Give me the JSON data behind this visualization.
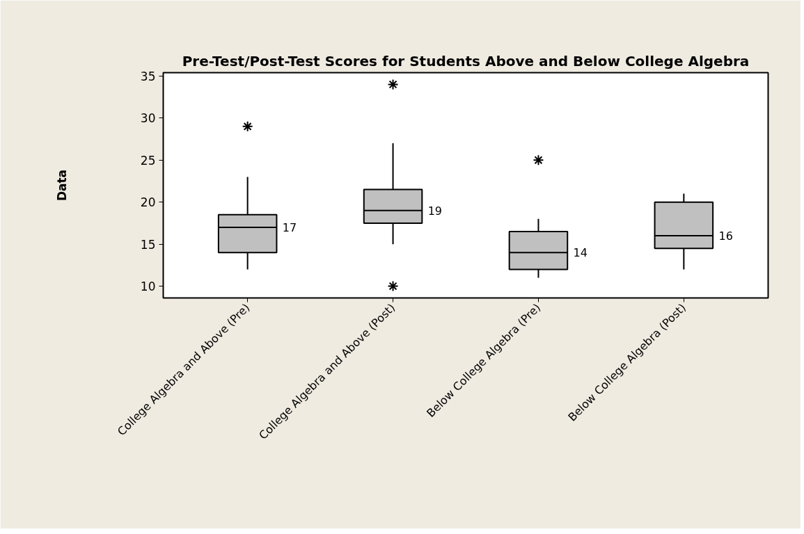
{
  "chart_data": {
    "type": "box",
    "title": "Pre-Test/Post-Test Scores for Students Above and Below College Algebra",
    "ylabel": "Data",
    "categories": [
      "College Algebra and Above (Pre)",
      "College Algebra and Above (Post)",
      "Below College Algebra (Pre)",
      "Below College Algebra (Post)"
    ],
    "color": "#c0c0c0",
    "boxes": [
      {
        "low": 12,
        "q1": 14,
        "median": 17,
        "q3": 18.5,
        "high": 23,
        "outliers": [
          29
        ]
      },
      {
        "low": 15,
        "q1": 17.5,
        "median": 19,
        "q3": 21.5,
        "high": 27,
        "outliers": [
          34,
          10
        ]
      },
      {
        "low": 11,
        "q1": 12,
        "median": 14,
        "q3": 16.5,
        "high": 18,
        "outliers": [
          25
        ]
      },
      {
        "low": 12,
        "q1": 14.5,
        "median": 16,
        "q3": 20,
        "high": 21
      }
    ],
    "annotations": [
      "17",
      "19",
      "14",
      "16"
    ],
    "ylim": [
      8.6,
      35.4
    ],
    "yticks": [
      10,
      15,
      20,
      25,
      30,
      35
    ]
  }
}
